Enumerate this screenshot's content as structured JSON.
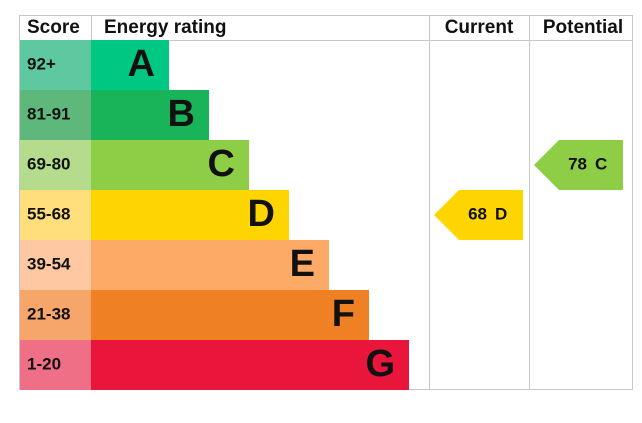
{
  "header": {
    "score": "Score",
    "energy_rating": "Energy rating",
    "current": "Current",
    "potential": "Potential"
  },
  "rows": [
    {
      "score": "92+",
      "letter": "A"
    },
    {
      "score": "81-91",
      "letter": "B"
    },
    {
      "score": "69-80",
      "letter": "C"
    },
    {
      "score": "55-68",
      "letter": "D"
    },
    {
      "score": "39-54",
      "letter": "E"
    },
    {
      "score": "21-38",
      "letter": "F"
    },
    {
      "score": "1-20",
      "letter": "G"
    }
  ],
  "current": {
    "score": 68,
    "rating": "D"
  },
  "potential": {
    "score": 78,
    "rating": "C"
  }
}
